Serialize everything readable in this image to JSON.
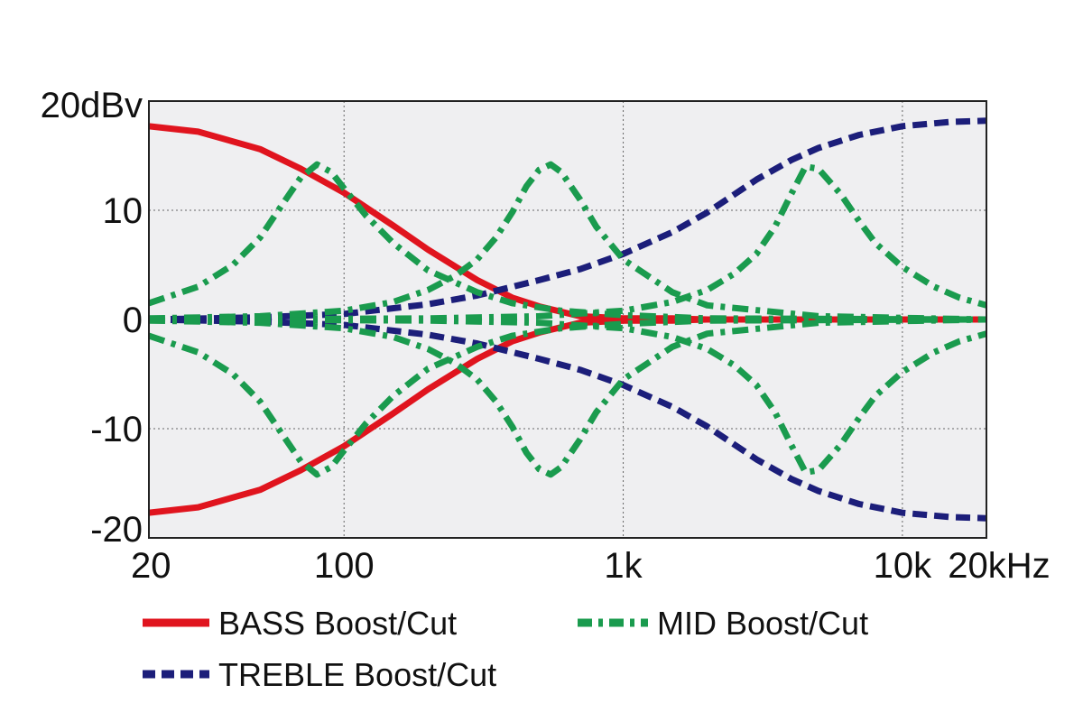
{
  "chart_data": {
    "type": "line",
    "x_scale": "log",
    "x_unit": "Hz",
    "xlim": [
      20,
      20000
    ],
    "ylim": [
      -20,
      20
    ],
    "grid": true,
    "background": "#efeff1",
    "x_ticks": [
      {
        "value": 20,
        "label": "20"
      },
      {
        "value": 100,
        "label": "100"
      },
      {
        "value": 1000,
        "label": "1k"
      },
      {
        "value": 10000,
        "label": "10k"
      },
      {
        "value": 20000,
        "label": "20kHz"
      }
    ],
    "y_ticks": [
      {
        "value": 20,
        "label": "20dBv"
      },
      {
        "value": 10,
        "label": "10"
      },
      {
        "value": 0,
        "label": "0"
      },
      {
        "value": -10,
        "label": "-10"
      },
      {
        "value": -20,
        "label": "-20"
      }
    ],
    "legend_position": "bottom",
    "series": [
      {
        "name": "BASS Boost/Cut",
        "style": "solid",
        "color": "#e0141e",
        "curves": [
          {
            "x": [
              20,
              30,
              50,
              70,
              100,
              150,
              200,
              300,
              400,
              500,
              700,
              1000,
              1500,
              2000,
              5000,
              20000
            ],
            "y": [
              17.7,
              17.2,
              15.6,
              13.8,
              11.6,
              8.6,
              6.4,
              3.6,
              2.0,
              1.2,
              0.3,
              0.1,
              0.1,
              0.0,
              0.0,
              0.0
            ]
          },
          {
            "x": [
              20,
              30,
              50,
              70,
              100,
              150,
              200,
              300,
              400,
              500,
              700,
              1000,
              1500,
              2000,
              5000,
              20000
            ],
            "y": [
              -17.7,
              -17.2,
              -15.6,
              -13.8,
              -11.6,
              -8.6,
              -6.4,
              -3.6,
              -2.0,
              -1.2,
              -0.3,
              -0.1,
              -0.1,
              0.0,
              0.0,
              0.0
            ]
          }
        ]
      },
      {
        "name": "TREBLE Boost/Cut",
        "style": "dashed",
        "color": "#1c1e7a",
        "curves": [
          {
            "x": [
              20,
              50,
              100,
              200,
              300,
              500,
              700,
              1000,
              1500,
              2000,
              3000,
              4000,
              5000,
              7000,
              10000,
              15000,
              20000
            ],
            "y": [
              0.0,
              0.2,
              0.5,
              1.4,
              2.2,
              3.6,
              4.6,
              6.0,
              8.0,
              9.8,
              12.8,
              14.6,
              15.7,
              16.9,
              17.7,
              18.1,
              18.2
            ]
          },
          {
            "x": [
              20,
              50,
              100,
              200,
              300,
              500,
              700,
              1000,
              1500,
              2000,
              3000,
              4000,
              5000,
              7000,
              10000,
              15000,
              20000
            ],
            "y": [
              0.0,
              -0.2,
              -0.5,
              -1.4,
              -2.2,
              -3.6,
              -4.6,
              -6.0,
              -8.0,
              -9.8,
              -12.8,
              -14.6,
              -15.7,
              -16.9,
              -17.7,
              -18.1,
              -18.2
            ]
          }
        ]
      },
      {
        "name": "MID Boost/Cut",
        "style": "dashdot",
        "color": "#1a9b4e",
        "curves": [
          {
            "x": [
              20,
              30,
              40,
              50,
              60,
              70,
              80,
              90,
              100,
              120,
              150,
              200,
              300,
              400,
              600,
              1000,
              2000,
              20000
            ],
            "y": [
              1.5,
              3.0,
              5.0,
              7.5,
              10.5,
              13.0,
              14.2,
              13.5,
              12.0,
              9.5,
              7.0,
              4.5,
              2.5,
              1.5,
              0.8,
              0.4,
              0.1,
              0.0
            ]
          },
          {
            "x": [
              20,
              30,
              40,
              50,
              60,
              70,
              80,
              90,
              100,
              120,
              150,
              200,
              300,
              400,
              600,
              1000,
              2000,
              20000
            ],
            "y": [
              -1.5,
              -3.0,
              -5.0,
              -7.5,
              -10.5,
              -13.0,
              -14.2,
              -13.5,
              -12.0,
              -9.5,
              -7.0,
              -4.5,
              -2.5,
              -1.5,
              -0.8,
              -0.4,
              -0.1,
              0.0
            ]
          },
          {
            "x": [
              20,
              50,
              100,
              150,
              200,
              250,
              300,
              350,
              400,
              450,
              500,
              550,
              600,
              700,
              800,
              1000,
              1500,
              2000,
              5000,
              20000
            ],
            "y": [
              0.1,
              0.3,
              0.8,
              1.6,
              2.7,
              4.0,
              5.5,
              7.5,
              9.8,
              12.2,
              13.7,
              14.2,
              13.5,
              11.0,
              8.5,
              5.5,
              2.5,
              1.3,
              0.3,
              0.0
            ]
          },
          {
            "x": [
              20,
              50,
              100,
              150,
              200,
              250,
              300,
              350,
              400,
              450,
              500,
              550,
              600,
              700,
              800,
              1000,
              1500,
              2000,
              5000,
              20000
            ],
            "y": [
              -0.1,
              -0.3,
              -0.8,
              -1.6,
              -2.7,
              -4.0,
              -5.5,
              -7.5,
              -9.8,
              -12.2,
              -13.7,
              -14.2,
              -13.5,
              -11.0,
              -8.5,
              -5.5,
              -2.5,
              -1.3,
              -0.3,
              0.0
            ]
          },
          {
            "x": [
              20,
              200,
              500,
              1000,
              1500,
              2000,
              2500,
              3000,
              3500,
              4000,
              4500,
              5000,
              6000,
              7000,
              8000,
              10000,
              13000,
              16000,
              20000
            ],
            "y": [
              0.0,
              0.1,
              0.3,
              0.8,
              1.6,
              2.7,
              4.2,
              6.0,
              8.5,
              11.5,
              14.0,
              13.8,
              11.5,
              9.0,
              7.0,
              4.8,
              3.0,
              2.0,
              1.3
            ]
          },
          {
            "x": [
              20,
              200,
              500,
              1000,
              1500,
              2000,
              2500,
              3000,
              3500,
              4000,
              4500,
              5000,
              6000,
              7000,
              8000,
              10000,
              13000,
              16000,
              20000
            ],
            "y": [
              0.0,
              -0.1,
              -0.3,
              -0.8,
              -1.6,
              -2.7,
              -4.2,
              -6.0,
              -8.5,
              -11.5,
              -14.0,
              -13.8,
              -11.5,
              -9.0,
              -7.0,
              -4.8,
              -3.0,
              -2.0,
              -1.3
            ]
          }
        ]
      }
    ]
  }
}
